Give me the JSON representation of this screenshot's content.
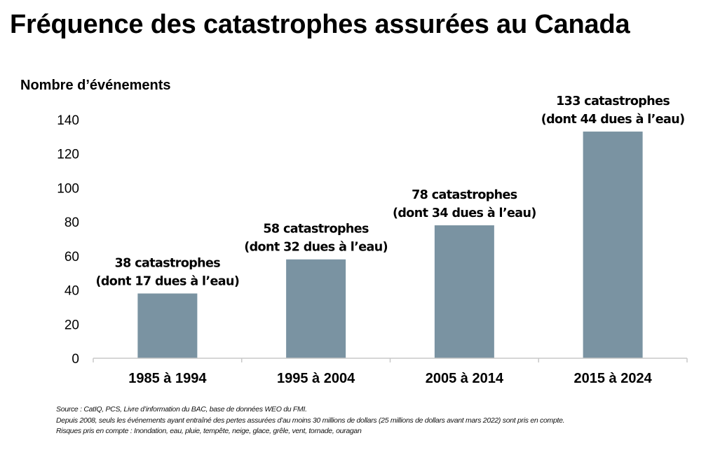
{
  "title": "Fréquence des catastrophes assurées au Canada",
  "chart_data": {
    "type": "bar",
    "title": "Fréquence des catastrophes assurées au Canada",
    "ylabel": "Nombre d’événements",
    "xlabel": "",
    "categories": [
      "1985 à 1994",
      "1995 à 2004",
      "2005 à 2014",
      "2015 à 2024"
    ],
    "values": [
      38,
      58,
      78,
      133
    ],
    "annotations": [
      [
        "38 catastrophes",
        "(dont 17 dues à l’eau)"
      ],
      [
        "58 catastrophes",
        "(dont 32 dues à l’eau)"
      ],
      [
        "78 catastrophes",
        "(dont 34 dues à l’eau)"
      ],
      [
        "133 catastrophes",
        "(dont 44 dues à l’eau)"
      ]
    ],
    "ylim": [
      0,
      140
    ],
    "yticks": [
      0,
      20,
      40,
      60,
      80,
      100,
      120,
      140
    ],
    "grid": false,
    "bar_color": "#7a93a2"
  },
  "notes": [
    "Source : CatIQ, PCS, Livre d’information du BAC, base de données WEO du FMI.",
    "Depuis 2008, seuls les événements ayant entraîné des pertes assurées d’au moins 30 millions de dollars (25 millions de dollars avant mars 2022) sont pris en compte.",
    "Risques pris en compte : Inondation, eau, pluie, tempête, neige, glace, grêle, vent, tornade, ouragan"
  ]
}
